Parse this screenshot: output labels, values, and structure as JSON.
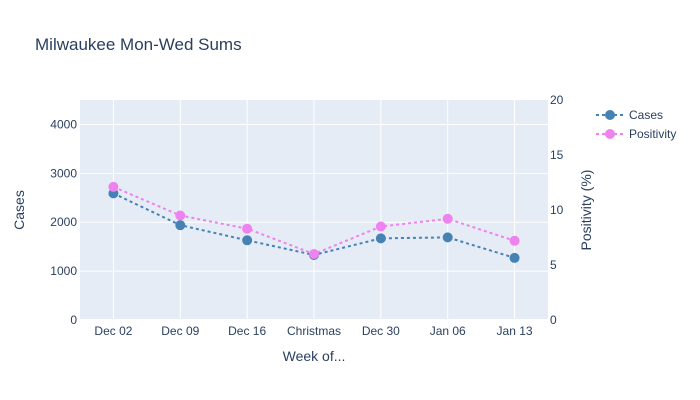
{
  "chart_data": {
    "type": "line",
    "title": "Milwaukee Mon-Wed Sums",
    "xlabel": "Week of...",
    "ylabel": "Cases",
    "y2label": "Positivity (%)",
    "categories": [
      "Dec 02",
      "Dec 09",
      "Dec 16",
      "Christmas",
      "Dec 30",
      "Jan 06",
      "Jan 13"
    ],
    "ylim": [
      0,
      4500
    ],
    "y2lim": [
      0,
      20
    ],
    "yticks": [
      0,
      1000,
      2000,
      3000,
      4000
    ],
    "y2ticks": [
      0,
      5,
      10,
      15,
      20
    ],
    "grid": true,
    "legend_position": "top-right",
    "background": "#e5ecf6",
    "series": [
      {
        "name": "Cases",
        "axis": "left",
        "color": "#4682b4",
        "line_style": "dotted",
        "marker": "circle",
        "values": [
          2590,
          1940,
          1630,
          1330,
          1670,
          1690,
          1270
        ]
      },
      {
        "name": "Positivity",
        "axis": "right",
        "color": "#ee82ee",
        "line_style": "dotted",
        "marker": "circle",
        "values": [
          12.1,
          9.5,
          8.3,
          6.0,
          8.5,
          9.2,
          7.2
        ]
      }
    ]
  }
}
